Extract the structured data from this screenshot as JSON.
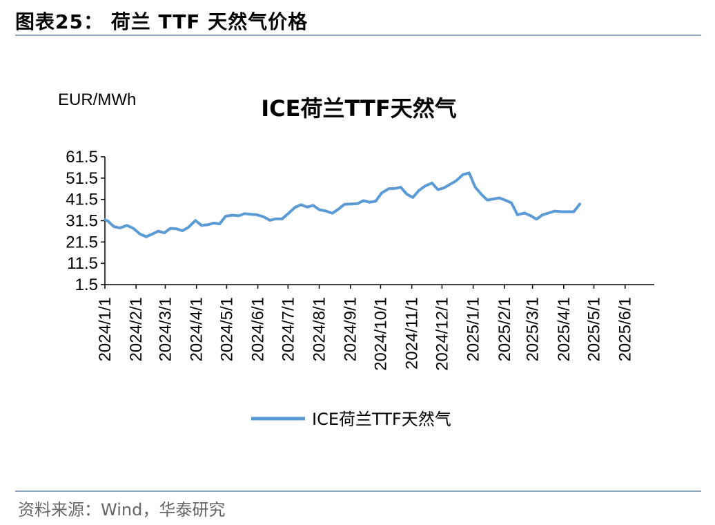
{
  "figure": {
    "title": "图表25： 荷兰 TTF 天然气价格",
    "source": "资料来源：Wind，华泰研究"
  },
  "chart_data": {
    "type": "line",
    "title": "ICE荷兰TTF天然气",
    "unit_label": "EUR/MWh",
    "ylim": [
      1.5,
      61.5
    ],
    "yticks": [
      "61.5",
      "51.5",
      "41.5",
      "31.5",
      "21.5",
      "11.5",
      "1.5"
    ],
    "xlim": [
      "2024-01-01",
      "2025-06-30"
    ],
    "xticks": [
      {
        "label": "2024/1/1",
        "date": "2024-01-01"
      },
      {
        "label": "2024/2/1",
        "date": "2024-02-01"
      },
      {
        "label": "2024/3/1",
        "date": "2024-03-01"
      },
      {
        "label": "2024/4/1",
        "date": "2024-04-01"
      },
      {
        "label": "2024/5/1",
        "date": "2024-05-01"
      },
      {
        "label": "2024/6/1",
        "date": "2024-06-01"
      },
      {
        "label": "2024/7/1",
        "date": "2024-07-01"
      },
      {
        "label": "2024/8/1",
        "date": "2024-08-01"
      },
      {
        "label": "2024/9/1",
        "date": "2024-09-01"
      },
      {
        "label": "2024/10/1",
        "date": "2024-10-01"
      },
      {
        "label": "2024/11/1",
        "date": "2024-11-01"
      },
      {
        "label": "2024/12/1",
        "date": "2024-12-01"
      },
      {
        "label": "2025/1/1",
        "date": "2025-01-01"
      },
      {
        "label": "2025/2/1",
        "date": "2025-02-01"
      },
      {
        "label": "2025/3/1",
        "date": "2025-03-01"
      },
      {
        "label": "2025/4/1",
        "date": "2025-04-01"
      },
      {
        "label": "2025/5/1",
        "date": "2025-05-01"
      },
      {
        "label": "2025/6/1",
        "date": "2025-06-01"
      }
    ],
    "grid": false,
    "legend": "bottom-center",
    "series": [
      {
        "name": "ICE荷兰TTF天然气",
        "color": "#5b9bd5",
        "points": [
          [
            "2024-01-01",
            32.0
          ],
          [
            "2024-01-04",
            31.3
          ],
          [
            "2024-01-10",
            28.7
          ],
          [
            "2024-01-16",
            28.1
          ],
          [
            "2024-01-23",
            29.3
          ],
          [
            "2024-01-29",
            28.0
          ],
          [
            "2024-02-05",
            25.2
          ],
          [
            "2024-02-11",
            24.0
          ],
          [
            "2024-02-17",
            25.2
          ],
          [
            "2024-02-23",
            26.6
          ],
          [
            "2024-02-29",
            25.8
          ],
          [
            "2024-03-06",
            27.9
          ],
          [
            "2024-03-12",
            27.7
          ],
          [
            "2024-03-18",
            26.8
          ],
          [
            "2024-03-24",
            28.4
          ],
          [
            "2024-03-31",
            31.6
          ],
          [
            "2024-04-06",
            29.3
          ],
          [
            "2024-04-12",
            29.6
          ],
          [
            "2024-04-18",
            30.4
          ],
          [
            "2024-04-24",
            30.0
          ],
          [
            "2024-04-30",
            33.6
          ],
          [
            "2024-05-07",
            34.1
          ],
          [
            "2024-05-13",
            33.8
          ],
          [
            "2024-05-19",
            34.8
          ],
          [
            "2024-05-25",
            34.5
          ],
          [
            "2024-05-31",
            34.3
          ],
          [
            "2024-06-07",
            33.3
          ],
          [
            "2024-06-13",
            31.7
          ],
          [
            "2024-06-19",
            32.4
          ],
          [
            "2024-06-25",
            32.3
          ],
          [
            "2024-07-02",
            35.2
          ],
          [
            "2024-07-08",
            37.8
          ],
          [
            "2024-07-14",
            39.0
          ],
          [
            "2024-07-20",
            37.9
          ],
          [
            "2024-07-26",
            38.7
          ],
          [
            "2024-08-01",
            36.7
          ],
          [
            "2024-08-08",
            36.0
          ],
          [
            "2024-08-14",
            35.0
          ],
          [
            "2024-08-20",
            36.9
          ],
          [
            "2024-08-26",
            39.2
          ],
          [
            "2024-09-01",
            39.3
          ],
          [
            "2024-09-08",
            39.5
          ],
          [
            "2024-09-14",
            40.9
          ],
          [
            "2024-09-20",
            40.2
          ],
          [
            "2024-09-26",
            40.6
          ],
          [
            "2024-10-02",
            44.5
          ],
          [
            "2024-10-09",
            46.5
          ],
          [
            "2024-10-15",
            46.6
          ],
          [
            "2024-10-21",
            47.2
          ],
          [
            "2024-10-27",
            44.0
          ],
          [
            "2024-11-02",
            42.4
          ],
          [
            "2024-11-08",
            45.7
          ],
          [
            "2024-11-14",
            47.7
          ],
          [
            "2024-11-21",
            49.2
          ],
          [
            "2024-11-27",
            46.1
          ],
          [
            "2024-12-03",
            46.9
          ],
          [
            "2024-12-09",
            48.6
          ],
          [
            "2024-12-15",
            50.2
          ],
          [
            "2024-12-22",
            53.2
          ],
          [
            "2024-12-28",
            53.9
          ],
          [
            "2025-01-03",
            47.3
          ],
          [
            "2025-01-09",
            44.0
          ],
          [
            "2025-01-15",
            41.2
          ],
          [
            "2025-01-21",
            41.7
          ],
          [
            "2025-01-27",
            42.2
          ],
          [
            "2025-02-02",
            41.1
          ],
          [
            "2025-02-08",
            39.9
          ],
          [
            "2025-02-14",
            34.3
          ],
          [
            "2025-02-21",
            35.1
          ],
          [
            "2025-02-27",
            33.9
          ],
          [
            "2025-03-05",
            32.2
          ],
          [
            "2025-03-11",
            34.3
          ],
          [
            "2025-03-17",
            35.1
          ],
          [
            "2025-03-23",
            36.0
          ],
          [
            "2025-03-30",
            35.7
          ],
          [
            "2025-04-05",
            35.7
          ],
          [
            "2025-04-11",
            35.7
          ],
          [
            "2025-04-17",
            39.3
          ]
        ]
      }
    ]
  }
}
